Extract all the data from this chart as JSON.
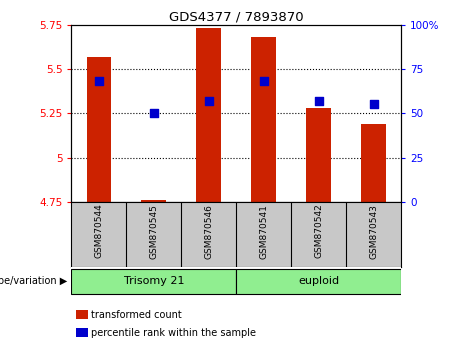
{
  "title": "GDS4377 / 7893870",
  "samples": [
    "GSM870544",
    "GSM870545",
    "GSM870546",
    "GSM870541",
    "GSM870542",
    "GSM870543"
  ],
  "red_values": [
    5.57,
    4.76,
    5.73,
    5.68,
    5.28,
    5.19
  ],
  "blue_values": [
    68,
    50,
    57,
    68,
    57,
    55
  ],
  "ylim_left": [
    4.75,
    5.75
  ],
  "ylim_right": [
    0,
    100
  ],
  "yticks_left": [
    4.75,
    5.0,
    5.25,
    5.5,
    5.75
  ],
  "yticks_right": [
    0,
    25,
    50,
    75,
    100
  ],
  "ytick_labels_left": [
    "4.75",
    "5",
    "5.25",
    "5.5",
    "5.75"
  ],
  "ytick_labels_right": [
    "0",
    "25",
    "50",
    "75",
    "100%"
  ],
  "groups": [
    {
      "label": "Trisomy 21",
      "indices": [
        0,
        1,
        2
      ]
    },
    {
      "label": "euploid",
      "indices": [
        3,
        4,
        5
      ]
    }
  ],
  "group_label": "genotype/variation",
  "bar_color": "#CC2200",
  "dot_color": "#0000CC",
  "baseline": 4.75,
  "bar_width": 0.45,
  "dot_size": 30,
  "tick_area_color": "#C8C8C8",
  "green_color": "#90EE90",
  "legend_red": "transformed count",
  "legend_blue": "percentile rank within the sample",
  "grid_ticks": [
    5.0,
    5.25,
    5.5
  ]
}
